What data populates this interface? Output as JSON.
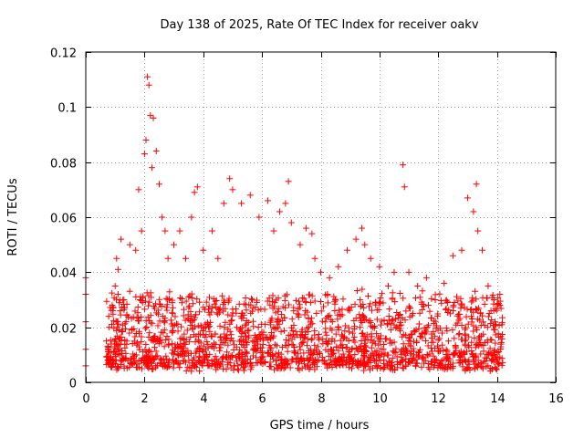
{
  "chart_data": {
    "type": "scatter",
    "title": "Day 138 of 2025, Rate Of TEC Index for receiver oakv",
    "xlabel": "GPS time / hours",
    "ylabel": "ROTI / TECUs",
    "xlim": [
      0,
      16
    ],
    "ylim": [
      0,
      0.12
    ],
    "xticks": [
      0,
      2,
      4,
      6,
      8,
      10,
      12,
      14,
      16
    ],
    "yticks": [
      0,
      0.02,
      0.04,
      0.06,
      0.08,
      0.1,
      0.12
    ],
    "xtick_labels": [
      "0",
      "2",
      "4",
      "6",
      "8",
      "10",
      "12",
      "14",
      "16"
    ],
    "ytick_labels": [
      "0",
      "0.02",
      "0.04",
      "0.06",
      "0.08",
      "0.1",
      "0.12"
    ],
    "grid": true,
    "marker": "plus",
    "color": "#ff0000",
    "series": [
      {
        "name": "ROTI",
        "x": [
          0.0,
          0.0,
          0.0,
          0.0,
          0.0,
          0.7,
          0.8,
          0.9,
          1.0,
          1.05,
          1.1,
          1.2,
          1.3,
          1.5,
          1.7,
          1.8,
          1.9,
          2.0,
          2.05,
          2.1,
          2.15,
          2.2,
          2.25,
          2.3,
          2.4,
          2.5,
          2.6,
          2.7,
          2.8,
          3.0,
          3.2,
          3.4,
          3.6,
          3.7,
          3.8,
          4.0,
          4.3,
          4.5,
          4.7,
          4.9,
          5.0,
          5.3,
          5.6,
          5.9,
          6.2,
          6.4,
          6.6,
          6.8,
          6.9,
          7.0,
          7.3,
          7.5,
          7.7,
          7.8,
          8.0,
          8.3,
          8.6,
          8.9,
          9.2,
          9.4,
          9.5,
          9.7,
          10.0,
          10.3,
          10.5,
          10.8,
          10.85,
          11.0,
          11.3,
          11.6,
          11.9,
          12.2,
          12.5,
          12.8,
          13.0,
          13.2,
          13.3,
          13.35,
          13.5,
          13.7,
          13.9,
          14.1
        ],
        "y": [
          0.038,
          0.032,
          0.022,
          0.012,
          0.006,
          0.015,
          0.02,
          0.028,
          0.035,
          0.045,
          0.041,
          0.052,
          0.03,
          0.05,
          0.048,
          0.07,
          0.055,
          0.083,
          0.088,
          0.111,
          0.108,
          0.097,
          0.078,
          0.096,
          0.084,
          0.072,
          0.06,
          0.055,
          0.045,
          0.05,
          0.055,
          0.045,
          0.06,
          0.069,
          0.071,
          0.048,
          0.055,
          0.045,
          0.065,
          0.074,
          0.07,
          0.065,
          0.068,
          0.06,
          0.066,
          0.055,
          0.062,
          0.065,
          0.073,
          0.058,
          0.05,
          0.056,
          0.054,
          0.045,
          0.04,
          0.038,
          0.042,
          0.048,
          0.052,
          0.056,
          0.05,
          0.045,
          0.042,
          0.035,
          0.04,
          0.079,
          0.071,
          0.04,
          0.035,
          0.038,
          0.03,
          0.036,
          0.046,
          0.048,
          0.067,
          0.062,
          0.072,
          0.055,
          0.048,
          0.035,
          0.03,
          0.028
        ]
      }
    ],
    "dense_band": {
      "x_start": 0.7,
      "x_end": 14.2,
      "y_floor": 0.004,
      "typical_max": 0.03
    }
  }
}
